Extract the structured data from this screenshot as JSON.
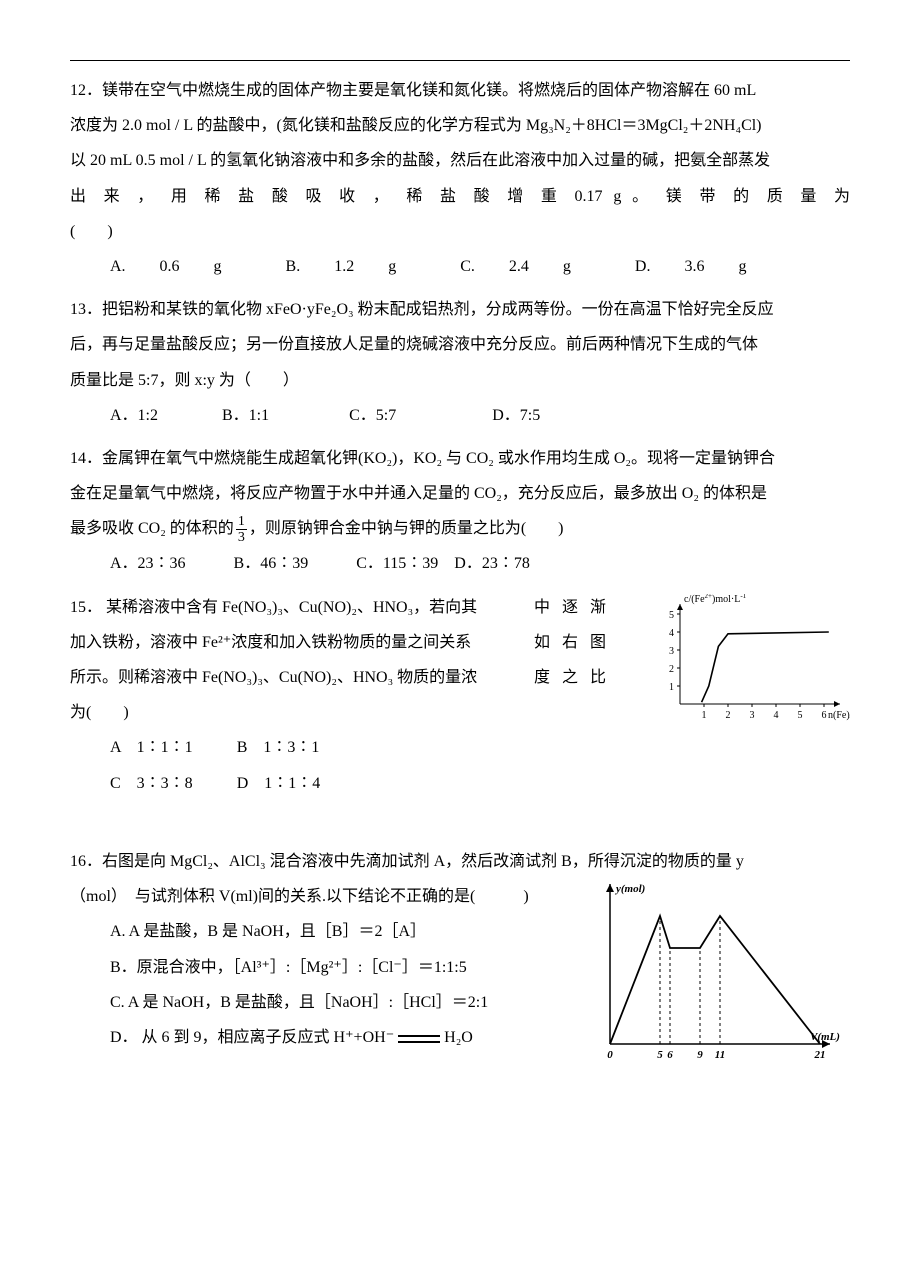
{
  "q12": {
    "text_l1": "12．镁带在空气中燃烧生成的固体产物主要是氧化镁和氮化镁。将燃烧后的固体产物溶解在 60 mL",
    "text_l2": "浓度为 2.0 mol / L 的盐酸中，(氮化镁和盐酸反应的化学方程式为  Mg₃N₂＋8HCl＝3MgCl₂＋2NH₄Cl)",
    "text_l3": "以 20 mL 0.5 mol / L 的氢氧化钠溶液中和多余的盐酸，然后在此溶液中加入过量的碱，把氨全部蒸发",
    "text_l4": "出 来 ， 用 稀 盐 酸 吸 收 ， 稀 盐 酸 增 重 0.17 g 。 镁 带 的 质 量 为",
    "text_l5": "(　　)",
    "opts": "A. 0.6 g　　　　B. 1.2 g　　　　C. 2.4 g　　　　D. 3.6 g"
  },
  "q13": {
    "text_l1": "13．把铝粉和某铁的氧化物 xFeO·yFe₂O₃ 粉末配成铝热剂，分成两等份。一份在高温下恰好完全反应",
    "text_l2": "后，再与足量盐酸反应；另一份直接放人足量的烧碱溶液中充分反应。前后两种情况下生成的气体",
    "text_l3": "质量比是 5:7，则 x:y 为（　　）",
    "opts": "A．1:2　　　　B．1:1　　　　　C．5:7　　　　　　D．7:5"
  },
  "q14": {
    "text_l1": "14．金属钾在氧气中燃烧能生成超氧化钾(KO₂)，KO₂ 与 CO₂ 或水作用均生成 O₂。现将一定量钠钾合",
    "text_l2": "金在足量氧气中燃烧，将反应产物置于水中并通入足量的 CO₂，充分反应后，最多放出 O₂ 的体积是",
    "text_l3a": "最多吸收 CO₂ 的体积的",
    "text_l3b": "，则原钠钾合金中钠与钾的质量之比为(　　)",
    "frac_num": "1",
    "frac_den": "3",
    "opts": "A．23∶36　　　B．46∶39　　　C．115∶39　D．23∶78"
  },
  "q15": {
    "text_l1a": "15． 某稀溶液中含有 Fe(NO₃)₃、Cu(NO)₂、HNO₃，若向其",
    "text_l1b": "中 逐 渐",
    "text_l2a": "加入铁粉，溶液中 Fe²⁺浓度和加入铁粉物质的量之间关系",
    "text_l2b": "如 右 图",
    "text_l3a": "所示。则稀溶液中 Fe(NO₃)₃、Cu(NO)₂、HNO₃ 物质的量浓",
    "text_l3b": "度 之 比",
    "text_l4": "为(　　)",
    "optA": "A　1∶1∶1",
    "optB": "B　1∶3∶1",
    "optC": "C　3∶3∶8",
    "optD": "D　1∶1∶4",
    "chart": {
      "type": "line",
      "x_label": "n(Fe)/mol",
      "y_label_html": "c/(Fe²⁺)mol·L⁻¹",
      "x_ticks": [
        1,
        2,
        3,
        4,
        5,
        6
      ],
      "y_ticks": [
        1,
        2,
        3,
        4,
        5
      ],
      "points": [
        [
          0.9,
          0.1
        ],
        [
          1.2,
          1.0
        ],
        [
          1.6,
          3.2
        ],
        [
          2.0,
          3.9
        ],
        [
          6.2,
          4.0
        ]
      ],
      "axis_color": "#000000",
      "line_color": "#000000",
      "label_fontsize": 10,
      "tick_fontsize": 10
    }
  },
  "q16": {
    "text_l1": "16．右图是向 MgCl₂、AlCl₃ 混合溶液中先滴加试剂 A，然后改滴试剂 B，所得沉淀的物质的量 y",
    "text_l2": "（mol）　与试剂体积 V(ml)间的关系.以下结论不正确的是(　　　)",
    "optA": "A. A 是盐酸，B 是 NaOH，且［B］＝2［A］",
    "optB": "B．原混合液中，［Al³⁺］:［Mg²⁺］:［Cl⁻］＝1:1:5",
    "optC": "C. A 是 NaOH，B 是盐酸，且［NaOH］:［HCl］＝2:1",
    "optD_a": "D． 从 6 到 9，相应离子反应式 H⁺+OH⁻",
    "optD_b": "H₂O",
    "chart": {
      "type": "line",
      "x_label": "V(mL)",
      "y_label": "y(mol)",
      "x_ticks": [
        0,
        5,
        6,
        9,
        11,
        21
      ],
      "points": [
        [
          0,
          0
        ],
        [
          5,
          8
        ],
        [
          6,
          6
        ],
        [
          9,
          6
        ],
        [
          11,
          8
        ],
        [
          21,
          0
        ]
      ],
      "dashed_x": [
        5,
        6,
        9,
        11
      ],
      "axis_color": "#000000",
      "line_color": "#000000",
      "label_fontsize": 11,
      "tick_fontsize": 11
    }
  }
}
